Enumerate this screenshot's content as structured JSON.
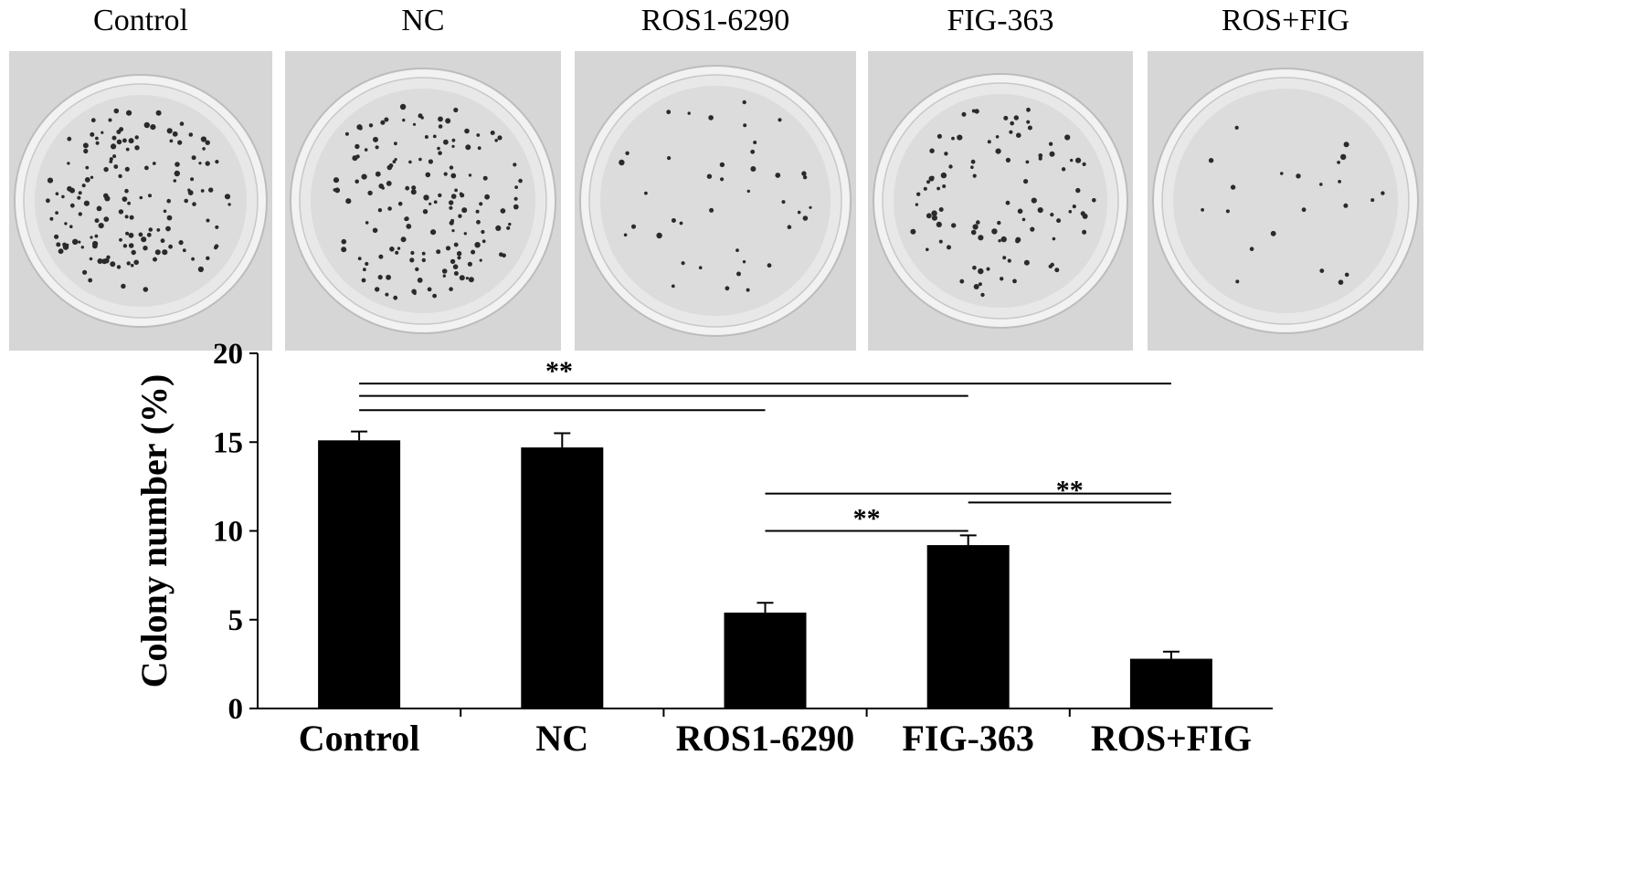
{
  "panels": [
    {
      "label": "Control",
      "colony_count": 150
    },
    {
      "label": "NC",
      "colony_count": 150
    },
    {
      "label": "ROS1-6290",
      "colony_count": 40
    },
    {
      "label": "FIG-363",
      "colony_count": 95
    },
    {
      "label": "ROS+FIG",
      "colony_count": 22
    }
  ],
  "colors": {
    "bar": "#000000",
    "photo_bg": "#d6d6d6",
    "dish_rim": "#f2f2f2",
    "colony": "#2a2a2a"
  },
  "chart_data": {
    "type": "bar",
    "categories": [
      "Control",
      "NC",
      "ROS1-6290",
      "FIG-363",
      "ROS+FIG"
    ],
    "values": [
      15.1,
      14.7,
      5.4,
      9.2,
      2.8
    ],
    "errors": [
      0.5,
      0.8,
      0.55,
      0.55,
      0.4
    ],
    "title": "",
    "xlabel": "",
    "ylabel": "Colony number (%)",
    "ylim": [
      0,
      20
    ],
    "yticks": [
      0,
      5,
      10,
      15,
      20
    ],
    "grid": false,
    "significance": [
      {
        "from": 0,
        "to": 4,
        "y": 18.3,
        "label": "**"
      },
      {
        "from": 0,
        "to": 3,
        "y": 17.6,
        "label": ""
      },
      {
        "from": 0,
        "to": 2,
        "y": 16.8,
        "label": ""
      },
      {
        "from": 2,
        "to": 4,
        "y": 12.1,
        "label": ""
      },
      {
        "from": 3,
        "to": 4,
        "y": 11.6,
        "label": "**"
      },
      {
        "from": 2,
        "to": 3,
        "y": 10.0,
        "label": "**"
      }
    ]
  }
}
